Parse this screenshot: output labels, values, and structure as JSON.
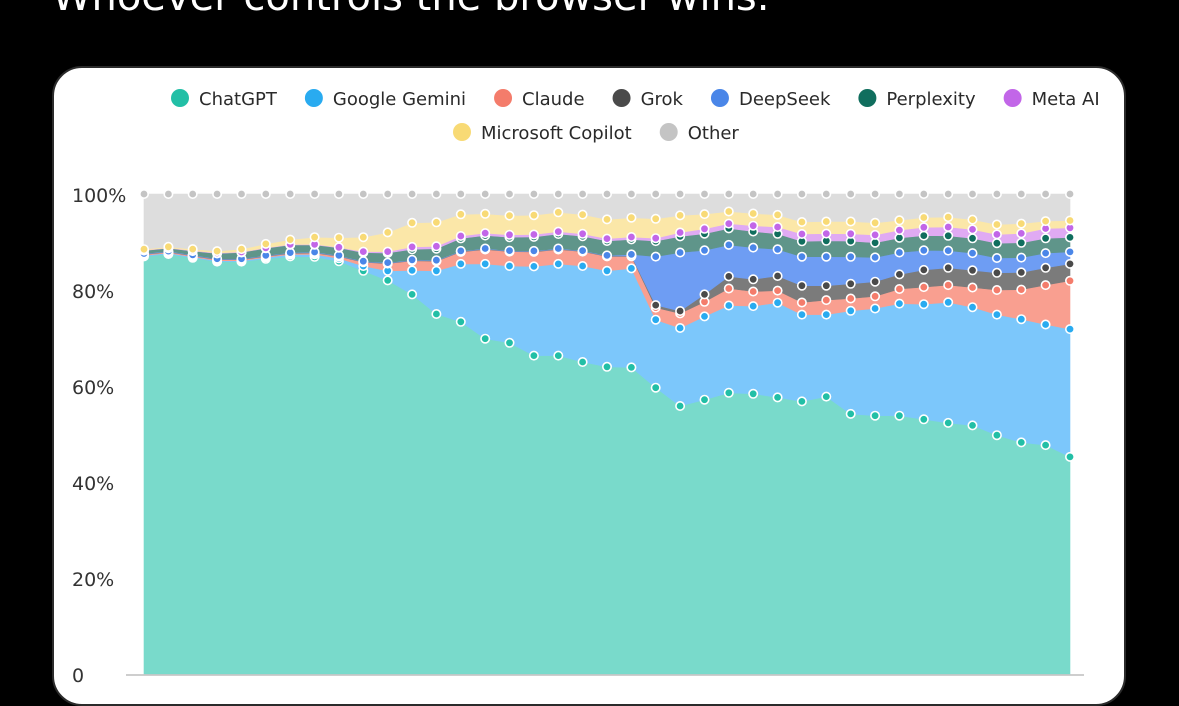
{
  "post": {
    "text": "Whoever controls the browser wins."
  },
  "chart_data": {
    "type": "area",
    "stacked": true,
    "normalized": true,
    "title": "",
    "xlabel": "",
    "ylabel": "",
    "ylim": [
      0,
      100
    ],
    "y_ticks": [
      {
        "value": 0,
        "label": "0"
      },
      {
        "value": 20,
        "label": "20%"
      },
      {
        "value": 40,
        "label": "40%"
      },
      {
        "value": 60,
        "label": "60%"
      },
      {
        "value": 80,
        "label": "80%"
      },
      {
        "value": 100,
        "label": "100%"
      }
    ],
    "grid": false,
    "markers": true,
    "legend": {
      "placement": "top"
    },
    "x": [
      1,
      2,
      3,
      4,
      5,
      6,
      7,
      8,
      9,
      10,
      11,
      12,
      13,
      14,
      15,
      16,
      17,
      18,
      19,
      20,
      21,
      22,
      23,
      24,
      25,
      26,
      27,
      28,
      29,
      30,
      31,
      32,
      33,
      34,
      35,
      36,
      37,
      38,
      39
    ],
    "series": [
      {
        "name": "ChatGPT",
        "color": "#79dacb",
        "marker_color": "#22bfa6",
        "values": [
          87.0,
          87.5,
          86.8,
          86.0,
          86.0,
          86.5,
          87.0,
          87.0,
          86.0,
          84.0,
          82.0,
          79.0,
          75.0,
          73.0,
          69.5,
          69.0,
          66.0,
          66.0,
          65.0,
          64.0,
          63.5,
          59.0,
          55.0,
          56.0,
          58.0,
          57.5,
          57.0,
          56.5,
          57.5,
          53.0,
          53.0,
          53.0,
          52.0,
          51.0,
          50.5,
          48.5,
          47.0,
          46.5,
          45.0
        ]
      },
      {
        "name": "Google Gemini",
        "color": "#7cc7fb",
        "marker_color": "#29abf0",
        "values": [
          0.2,
          0.2,
          0.2,
          0.2,
          0.2,
          0.3,
          0.4,
          0.5,
          0.6,
          1.0,
          2.0,
          5.0,
          9.0,
          12.0,
          15.5,
          16.0,
          18.5,
          19.0,
          20.0,
          20.0,
          20.5,
          14.0,
          16.0,
          17.0,
          18.0,
          18.0,
          19.5,
          18.0,
          17.0,
          21.0,
          22.0,
          23.0,
          23.5,
          24.5,
          24.0,
          24.5,
          25.0,
          24.5,
          26.5
        ]
      },
      {
        "name": "Claude",
        "color": "#f99f90",
        "marker_color": "#f47c6b",
        "values": [
          0.2,
          0.2,
          0.2,
          0.2,
          0.2,
          0.2,
          0.2,
          0.3,
          0.4,
          0.8,
          1.5,
          2.0,
          2.0,
          2.5,
          3.0,
          3.0,
          3.0,
          3.0,
          3.0,
          3.0,
          2.5,
          2.5,
          3.0,
          3.0,
          3.5,
          3.0,
          2.5,
          2.5,
          3.0,
          2.5,
          2.5,
          3.0,
          3.5,
          3.5,
          4.0,
          5.0,
          6.0,
          8.0,
          10.0
        ]
      },
      {
        "name": "Grok",
        "color": "#7b7b7b",
        "marker_color": "#4a4a4a",
        "values": [
          0.1,
          0.1,
          0.1,
          0.1,
          0.1,
          0.1,
          0.1,
          0.1,
          0.1,
          0.1,
          0.1,
          0.1,
          0.1,
          0.1,
          0.1,
          0.1,
          0.1,
          0.1,
          0.1,
          0.1,
          0.1,
          0.5,
          0.5,
          1.5,
          2.5,
          2.5,
          3.0,
          3.5,
          3.0,
          3.0,
          3.0,
          3.0,
          3.5,
          3.5,
          3.5,
          3.5,
          3.5,
          3.5,
          3.5
        ]
      },
      {
        "name": "DeepSeek",
        "color": "#6e9df3",
        "marker_color": "#4a86e8",
        "values": [
          0.1,
          0.1,
          0.1,
          0.1,
          0.1,
          0.1,
          0.1,
          0.1,
          0.1,
          0.1,
          0.1,
          0.1,
          0.1,
          0.1,
          0.1,
          0.1,
          0.1,
          0.1,
          0.1,
          0.1,
          0.3,
          10.0,
          12.0,
          9.0,
          6.5,
          6.5,
          5.5,
          6.0,
          6.0,
          5.5,
          5.0,
          4.5,
          4.0,
          3.5,
          3.5,
          3.0,
          3.0,
          3.0,
          2.5
        ]
      },
      {
        "name": "Perplexity",
        "color": "#5f958a",
        "marker_color": "#106e5e",
        "values": [
          0.6,
          0.6,
          0.8,
          1.1,
          1.3,
          1.5,
          1.6,
          1.5,
          1.6,
          1.8,
          2.0,
          2.2,
          2.4,
          2.6,
          2.7,
          2.8,
          2.9,
          3.0,
          3.0,
          3.0,
          3.1,
          3.2,
          3.3,
          3.4,
          3.4,
          3.3,
          3.2,
          3.2,
          3.3,
          3.2,
          3.0,
          3.0,
          3.0,
          3.0,
          3.0,
          3.0,
          3.0,
          3.0,
          3.0
        ]
      },
      {
        "name": "Meta AI",
        "color": "#e0aaf3",
        "marker_color": "#c266e8",
        "values": [
          0.1,
          0.1,
          0.1,
          0.1,
          0.1,
          0.1,
          0.1,
          0.1,
          0.1,
          0.2,
          0.3,
          0.5,
          0.5,
          0.5,
          0.5,
          0.5,
          0.5,
          0.5,
          0.5,
          0.5,
          0.5,
          0.6,
          0.8,
          1.0,
          1.0,
          1.2,
          1.4,
          1.5,
          1.5,
          1.5,
          1.6,
          1.6,
          1.7,
          1.8,
          1.8,
          1.8,
          1.9,
          2.0,
          2.0
        ]
      },
      {
        "name": "Microsoft Copilot",
        "color": "#fbe7a8",
        "marker_color": "#f8da75",
        "values": [
          0.2,
          0.2,
          0.3,
          0.4,
          0.6,
          0.8,
          1.0,
          1.5,
          2.0,
          3.0,
          4.0,
          5.0,
          5.0,
          4.5,
          4.0,
          4.0,
          4.0,
          4.0,
          4.0,
          4.0,
          4.0,
          4.0,
          3.5,
          3.0,
          2.5,
          2.5,
          2.5,
          2.5,
          2.5,
          2.5,
          2.5,
          2.0,
          2.0,
          2.0,
          2.0,
          2.0,
          2.0,
          1.5,
          1.5
        ]
      },
      {
        "name": "Other",
        "color": "#dddddd",
        "marker_color": "#c4c4c4",
        "values": [
          11.5,
          11.0,
          11.5,
          11.9,
          11.5,
          10.4,
          9.5,
          9.0,
          9.1,
          9.0,
          8.0,
          6.0,
          5.9,
          4.2,
          4.1,
          4.5,
          4.4,
          3.8,
          4.3,
          5.3,
          4.9,
          5.1,
          4.4,
          4.1,
          3.6,
          4.0,
          4.3,
          5.8,
          5.7,
          5.6,
          5.9,
          5.4,
          4.8,
          4.7,
          5.2,
          6.2,
          6.0,
          5.5,
          5.5
        ]
      }
    ]
  }
}
